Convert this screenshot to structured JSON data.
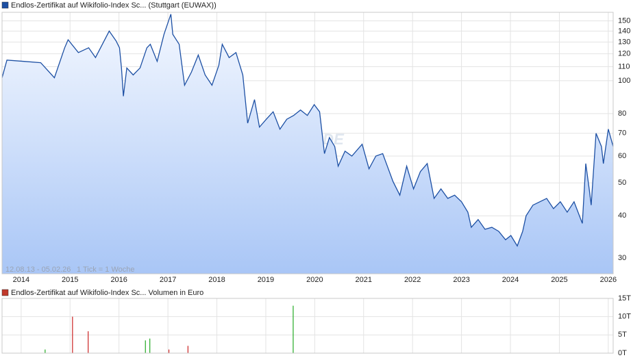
{
  "chart_data": [
    {
      "type": "line",
      "title": "Endlos-Zertifikat auf Wikifolio-Index Sc... (Stuttgart (EUWAX))",
      "color": "#1c4fa3",
      "log": true,
      "grid": true,
      "annotations": [
        "12.08.13 - 05.02.26",
        "1 Tick = 1 Woche"
      ],
      "watermark": "ARIVA.DE",
      "xlim": [
        2013.61,
        2026.1
      ],
      "xticks": [
        2014,
        2015,
        2016,
        2017,
        2018,
        2019,
        2020,
        2021,
        2022,
        2023,
        2024,
        2025,
        2026
      ],
      "ylim": [
        27,
        159
      ],
      "yticks": [
        30,
        40,
        50,
        60,
        70,
        80,
        100,
        110,
        120,
        130,
        140,
        150
      ],
      "x": [
        2013.61,
        2013.71,
        2014.06,
        2014.4,
        2014.68,
        2014.89,
        2014.96,
        2015.17,
        2015.38,
        2015.52,
        2015.8,
        2015.94,
        2016.01,
        2016.05,
        2016.09,
        2016.16,
        2016.29,
        2016.43,
        2016.57,
        2016.64,
        2016.78,
        2016.92,
        2017.06,
        2017.1,
        2017.23,
        2017.34,
        2017.48,
        2017.62,
        2017.76,
        2017.9,
        2018.04,
        2018.11,
        2018.25,
        2018.39,
        2018.53,
        2018.63,
        2018.77,
        2018.87,
        2019.01,
        2019.15,
        2019.29,
        2019.43,
        2019.57,
        2019.71,
        2019.85,
        2019.99,
        2020.1,
        2020.2,
        2020.3,
        2020.41,
        2020.48,
        2020.62,
        2020.76,
        2020.97,
        2021.11,
        2021.25,
        2021.39,
        2021.6,
        2021.74,
        2021.88,
        2022.02,
        2022.16,
        2022.3,
        2022.44,
        2022.58,
        2022.72,
        2022.86,
        2023.0,
        2023.13,
        2023.2,
        2023.34,
        2023.48,
        2023.62,
        2023.76,
        2023.9,
        2024.01,
        2024.14,
        2024.25,
        2024.32,
        2024.46,
        2024.6,
        2024.74,
        2024.88,
        2025.02,
        2025.16,
        2025.3,
        2025.47,
        2025.54,
        2025.61,
        2025.65,
        2025.75,
        2025.86,
        2025.9,
        2026.0,
        2026.1
      ],
      "values": [
        102,
        115,
        114,
        113,
        102,
        125,
        132,
        121,
        125,
        117,
        140,
        131,
        125,
        109,
        90,
        109,
        104,
        109,
        125,
        128,
        114,
        137,
        157,
        137,
        128,
        97,
        106,
        119,
        104,
        97,
        111,
        128,
        117,
        121,
        104,
        75,
        88,
        73,
        77,
        81,
        72,
        77,
        79,
        82,
        79,
        85,
        81,
        61,
        68,
        64,
        56,
        62,
        60,
        65,
        55,
        60,
        61,
        50.5,
        46,
        56,
        48,
        54,
        57,
        45,
        48,
        45,
        46,
        44,
        41,
        37,
        39,
        36.5,
        37,
        36,
        34,
        35,
        32.6,
        36,
        40,
        43,
        44,
        45,
        42,
        44,
        41,
        44,
        38,
        57,
        48,
        43,
        70,
        64,
        57,
        72,
        64
      ]
    },
    {
      "type": "bar",
      "title": "Endlos-Zertifikat auf Wikifolio-Index Sc... Volumen in Euro",
      "color": "#c0392b",
      "grid": true,
      "xlim": [
        2013.61,
        2026.1
      ],
      "xticks": [
        2014,
        2015,
        2016,
        2017,
        2018,
        2019,
        2020,
        2021,
        2022,
        2023,
        2024,
        2025,
        2026
      ],
      "ylim": [
        0,
        15000
      ],
      "yticks": [
        {
          "value": 0,
          "label": "0T"
        },
        {
          "value": 5000,
          "label": "5T"
        },
        {
          "value": 10000,
          "label": "10T"
        },
        {
          "value": 15000,
          "label": "15T"
        }
      ],
      "x": [
        2014.49,
        2015.05,
        2015.37,
        2016.54,
        2016.63,
        2017.02,
        2017.41,
        2019.56
      ],
      "values": [
        1000,
        10000,
        6000,
        3500,
        4000,
        1000,
        2000,
        13000
      ],
      "colors": [
        "#22aa22",
        "#cc2222",
        "#cc2222",
        "#22aa22",
        "#22aa22",
        "#cc2222",
        "#cc2222",
        "#22aa22"
      ]
    }
  ]
}
